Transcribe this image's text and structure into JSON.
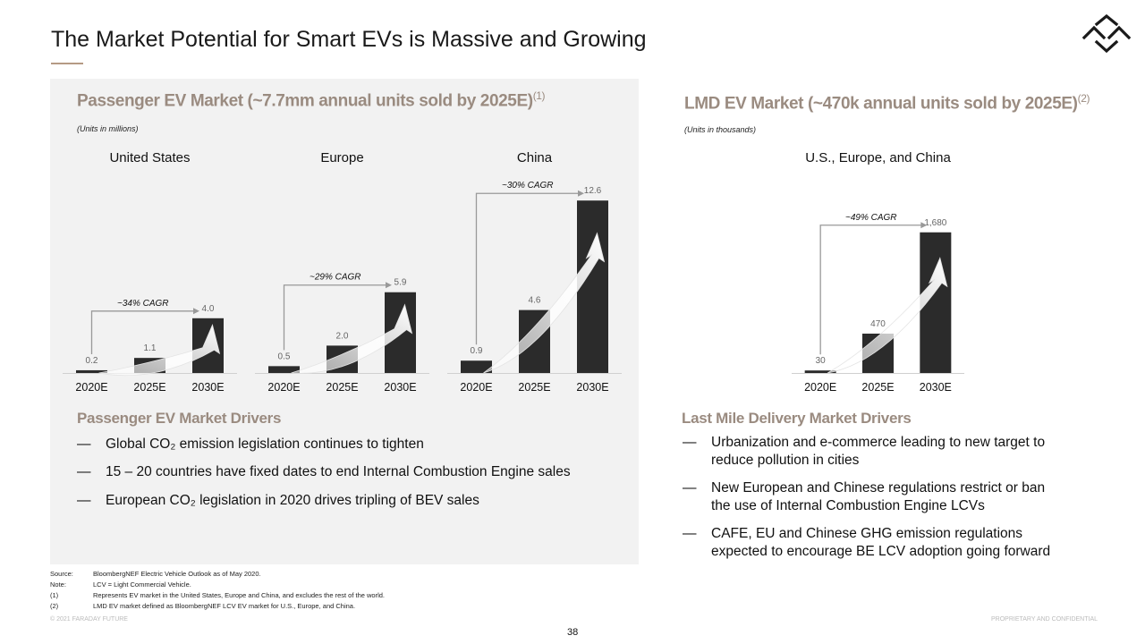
{
  "header": {
    "title": "The Market Potential for Smart EVs is Massive and Growing",
    "logo_icon": "faraday-future-logo-icon"
  },
  "left": {
    "title": "Passenger EV Market (~7.7mm annual units sold by 2025E)",
    "title_sup": "(1)",
    "units": "(Units in millions)",
    "drivers_title": "Passenger EV Market Drivers",
    "drivers": [
      {
        "dash": "—",
        "text": "Global CO₂ emission legislation continues to tighten"
      },
      {
        "dash": "—",
        "text": "15 – 20 countries have fixed dates to end Internal Combustion Engine sales"
      },
      {
        "dash": "—",
        "text": "European CO₂ legislation in 2020 drives tripling of BEV sales"
      }
    ]
  },
  "right": {
    "title": "LMD EV Market (~470k annual units sold by 2025E)",
    "title_sup": "(2)",
    "units": "(Units in thousands)",
    "drivers_title": "Last Mile Delivery Market Drivers",
    "drivers": [
      {
        "dash": "—",
        "line1": "Urbanization and e-commerce leading to new target to",
        "line2": "reduce pollution in cities"
      },
      {
        "dash": "—",
        "line1": "New European and Chinese regulations restrict or ban",
        "line2": "the use of Internal Combustion Engine LCVs"
      },
      {
        "dash": "—",
        "line1": "CAFE, EU and Chinese GHG emission regulations",
        "line2": "expected to encourage BE LCV adoption going forward"
      }
    ]
  },
  "chart_data": [
    {
      "type": "bar",
      "title": "United States",
      "categories": [
        "2020E",
        "2025E",
        "2030E"
      ],
      "values": [
        0.2,
        1.1,
        4.0
      ],
      "labels": [
        "0.2",
        "1.1",
        "4.0"
      ],
      "annotation": "~34% CAGR",
      "ylim": [
        0,
        14
      ],
      "color": "#2b2b2b"
    },
    {
      "type": "bar",
      "title": "Europe",
      "categories": [
        "2020E",
        "2025E",
        "2030E"
      ],
      "values": [
        0.5,
        2.0,
        5.9
      ],
      "labels": [
        "0.5",
        "2.0",
        "5.9"
      ],
      "annotation": "~29% CAGR",
      "ylim": [
        0,
        14
      ],
      "color": "#2b2b2b"
    },
    {
      "type": "bar",
      "title": "China",
      "categories": [
        "2020E",
        "2025E",
        "2030E"
      ],
      "values": [
        0.9,
        4.6,
        12.6
      ],
      "labels": [
        "0.9",
        "4.6",
        "12.6"
      ],
      "annotation": "~30% CAGR",
      "ylim": [
        0,
        14
      ],
      "color": "#2b2b2b"
    },
    {
      "type": "bar",
      "title": "U.S., Europe, and China",
      "categories": [
        "2020E",
        "2025E",
        "2030E"
      ],
      "values": [
        30,
        470,
        1680
      ],
      "labels": [
        "30",
        "470",
        "1,680"
      ],
      "annotation": "~49% CAGR",
      "ylim": [
        0,
        2150
      ],
      "color": "#2b2b2b"
    }
  ],
  "footnotes": [
    {
      "label": "Source:",
      "text": "BloombergNEF Electric Vehicle Outlook as of May 2020."
    },
    {
      "label": "Note:",
      "text": "LCV = Light Commercial Vehicle."
    },
    {
      "label": "(1)",
      "text": "Represents EV market in the United States, Europe and China, and excludes the rest of the world."
    },
    {
      "label": "(2)",
      "text": "LMD EV market defined as BloombergNEF LCV EV market for U.S., Europe, and China."
    }
  ],
  "footer": {
    "copyright": "© 2021 FARADAY FUTURE",
    "page": "38",
    "confidential": "PROPRIETARY  AND CONFIDENTIAL"
  }
}
